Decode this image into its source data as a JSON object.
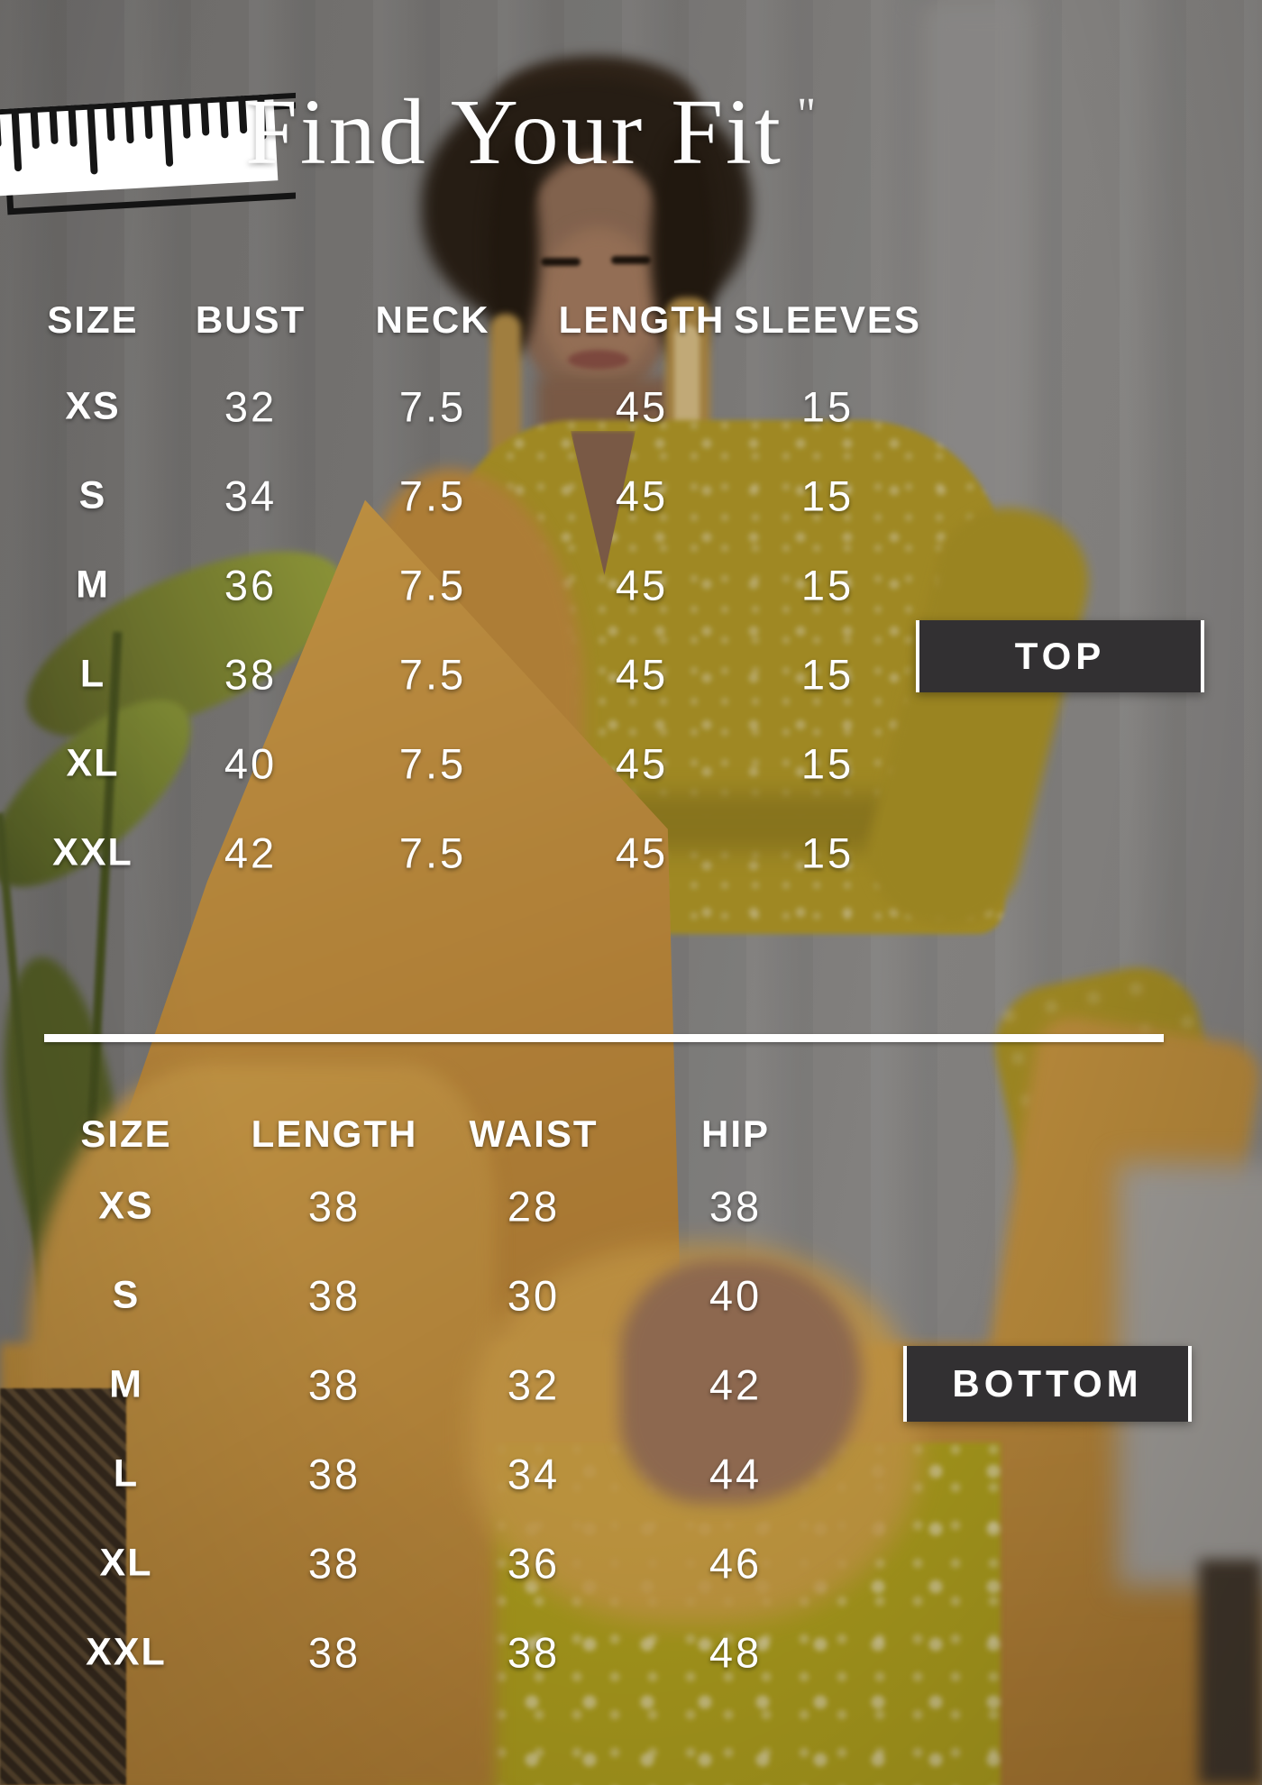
{
  "header": {
    "title": "Find Your Fit",
    "unit_mark": "\"",
    "icon": "ruler-icon"
  },
  "top_table": {
    "badge_label": "TOP",
    "columns": [
      "SIZE",
      "BUST",
      "NECK",
      "LENGTH",
      "SLEEVES"
    ],
    "rows": [
      [
        "XS",
        "32",
        "7.5",
        "45",
        "15"
      ],
      [
        "S",
        "34",
        "7.5",
        "45",
        "15"
      ],
      [
        "M",
        "36",
        "7.5",
        "45",
        "15"
      ],
      [
        "L",
        "38",
        "7.5",
        "45",
        "15"
      ],
      [
        "XL",
        "40",
        "7.5",
        "45",
        "15"
      ],
      [
        "XXL",
        "42",
        "7.5",
        "45",
        "15"
      ]
    ]
  },
  "bottom_table": {
    "badge_label": "BOTTOM",
    "columns": [
      "SIZE",
      "LENGTH",
      "WAIST",
      "HIP"
    ],
    "rows": [
      [
        "XS",
        "38",
        "28",
        "38"
      ],
      [
        "S",
        "38",
        "30",
        "40"
      ],
      [
        "M",
        "38",
        "32",
        "42"
      ],
      [
        "L",
        "38",
        "34",
        "44"
      ],
      [
        "XL",
        "38",
        "36",
        "46"
      ],
      [
        "XXL",
        "38",
        "38",
        "48"
      ]
    ]
  },
  "chart_data": [
    {
      "type": "table",
      "title": "TOP",
      "unit": "\"",
      "columns": [
        "SIZE",
        "BUST",
        "NECK",
        "LENGTH",
        "SLEEVES"
      ],
      "rows": [
        {
          "SIZE": "XS",
          "BUST": 32,
          "NECK": 7.5,
          "LENGTH": 45,
          "SLEEVES": 15
        },
        {
          "SIZE": "S",
          "BUST": 34,
          "NECK": 7.5,
          "LENGTH": 45,
          "SLEEVES": 15
        },
        {
          "SIZE": "M",
          "BUST": 36,
          "NECK": 7.5,
          "LENGTH": 45,
          "SLEEVES": 15
        },
        {
          "SIZE": "L",
          "BUST": 38,
          "NECK": 7.5,
          "LENGTH": 45,
          "SLEEVES": 15
        },
        {
          "SIZE": "XL",
          "BUST": 40,
          "NECK": 7.5,
          "LENGTH": 45,
          "SLEEVES": 15
        },
        {
          "SIZE": "XXL",
          "BUST": 42,
          "NECK": 7.5,
          "LENGTH": 45,
          "SLEEVES": 15
        }
      ]
    },
    {
      "type": "table",
      "title": "BOTTOM",
      "unit": "\"",
      "columns": [
        "SIZE",
        "LENGTH",
        "WAIST",
        "HIP"
      ],
      "rows": [
        {
          "SIZE": "XS",
          "LENGTH": 38,
          "WAIST": 28,
          "HIP": 38
        },
        {
          "SIZE": "S",
          "LENGTH": 38,
          "WAIST": 30,
          "HIP": 40
        },
        {
          "SIZE": "M",
          "LENGTH": 38,
          "WAIST": 32,
          "HIP": 42
        },
        {
          "SIZE": "L",
          "LENGTH": 38,
          "WAIST": 34,
          "HIP": 44
        },
        {
          "SIZE": "XL",
          "LENGTH": 38,
          "WAIST": 36,
          "HIP": 46
        },
        {
          "SIZE": "XXL",
          "LENGTH": 38,
          "WAIST": 38,
          "HIP": 48
        }
      ]
    }
  ],
  "colors": {
    "badge_background": "#323032",
    "text": "#ffffff",
    "kurta_yellow": "#b09726",
    "dupatta_orange": "#c6933f"
  }
}
